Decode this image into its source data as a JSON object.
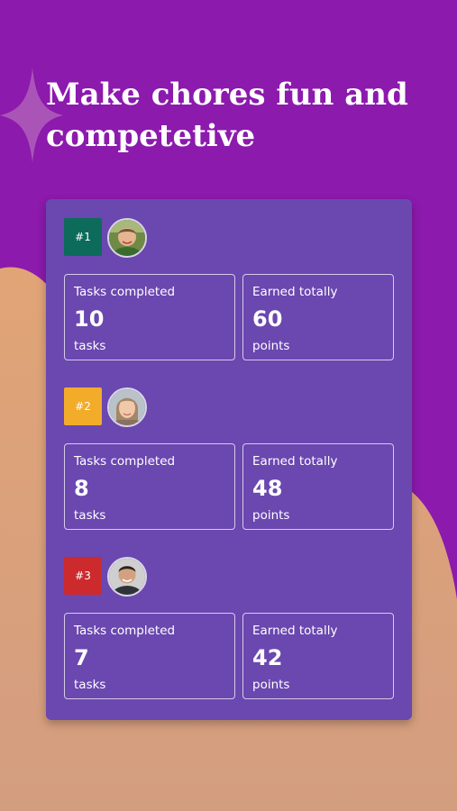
{
  "headline": "Make chores fun and competetive",
  "colors": {
    "background_purple": "#8c1aad",
    "background_peach": "#d6a07e",
    "card": "#6b47b0",
    "rank_1": "#0d6b5b",
    "rank_2": "#f2ac2a",
    "rank_3": "#cc2a2d"
  },
  "leaderboard": [
    {
      "rank": "#1",
      "rank_color": "#0d6b5b",
      "avatar": "boy-avatar",
      "tasks_label": "Tasks completed",
      "tasks_value": "10",
      "tasks_unit": "tasks",
      "points_label": "Earned totally",
      "points_value": "60",
      "points_unit": "points"
    },
    {
      "rank": "#2",
      "rank_color": "#f2ac2a",
      "avatar": "girl-avatar",
      "tasks_label": "Tasks completed",
      "tasks_value": "8",
      "tasks_unit": "tasks",
      "points_label": "Earned totally",
      "points_value": "48",
      "points_unit": "points"
    },
    {
      "rank": "#3",
      "rank_color": "#cc2a2d",
      "avatar": "man-avatar",
      "tasks_label": "Tasks completed",
      "tasks_value": "7",
      "tasks_unit": "tasks",
      "points_label": "Earned totally",
      "points_value": "42",
      "points_unit": "points"
    }
  ]
}
